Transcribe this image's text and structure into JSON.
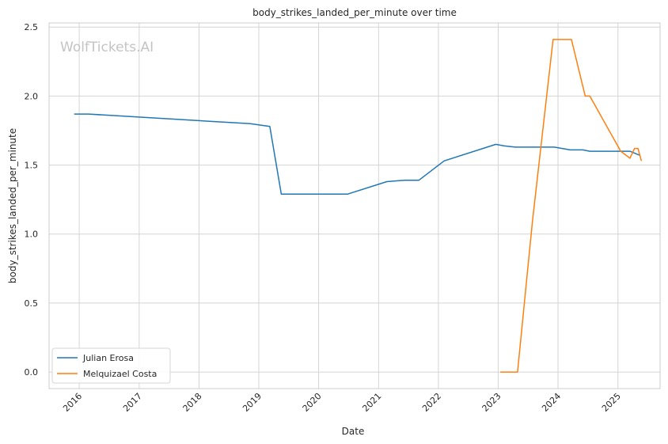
{
  "chart_data": {
    "type": "line",
    "title": "body_strikes_landed_per_minute over time",
    "xlabel": "Date",
    "ylabel": "body_strikes_landed_per_minute",
    "watermark": "WolfTickets.AI",
    "grid": true,
    "legend_position": "lower-left",
    "xlim": [
      "2015-07-01",
      "2025-09-15"
    ],
    "ylim": [
      -0.12,
      2.53
    ],
    "x_ticks": [
      "2016",
      "2017",
      "2018",
      "2019",
      "2020",
      "2021",
      "2022",
      "2023",
      "2024",
      "2025"
    ],
    "y_ticks": [
      "0.0",
      "0.5",
      "1.0",
      "1.5",
      "2.0",
      "2.5"
    ],
    "series": [
      {
        "name": "Julian Erosa",
        "color": "#1f77b4",
        "points": [
          [
            "2015-12-01",
            1.87
          ],
          [
            "2016-02-27",
            1.87
          ],
          [
            "2018-11-10",
            1.8
          ],
          [
            "2019-03-09",
            1.78
          ],
          [
            "2019-05-18",
            1.29
          ],
          [
            "2020-06-27",
            1.29
          ],
          [
            "2021-02-20",
            1.38
          ],
          [
            "2021-06-12",
            1.39
          ],
          [
            "2021-09-04",
            1.39
          ],
          [
            "2022-02-05",
            1.53
          ],
          [
            "2022-12-17",
            1.65
          ],
          [
            "2023-02-04",
            1.64
          ],
          [
            "2023-04-15",
            1.63
          ],
          [
            "2023-12-09",
            1.63
          ],
          [
            "2024-03-16",
            1.61
          ],
          [
            "2024-06-01",
            1.61
          ],
          [
            "2024-07-13",
            1.6
          ],
          [
            "2025-03-15",
            1.6
          ],
          [
            "2025-05-17",
            1.57
          ]
        ]
      },
      {
        "name": "Melquizael Costa",
        "color": "#ff7f0e",
        "points": [
          [
            "2023-01-14",
            0.0
          ],
          [
            "2023-04-29",
            0.0
          ],
          [
            "2023-07-29",
            1.09
          ],
          [
            "2023-12-02",
            2.41
          ],
          [
            "2024-03-23",
            2.41
          ],
          [
            "2024-06-15",
            2.0
          ],
          [
            "2024-07-13",
            2.0
          ],
          [
            "2025-01-18",
            1.6
          ],
          [
            "2025-03-15",
            1.55
          ],
          [
            "2025-04-12",
            1.62
          ],
          [
            "2025-05-03",
            1.62
          ],
          [
            "2025-05-24",
            1.53
          ]
        ]
      }
    ]
  }
}
